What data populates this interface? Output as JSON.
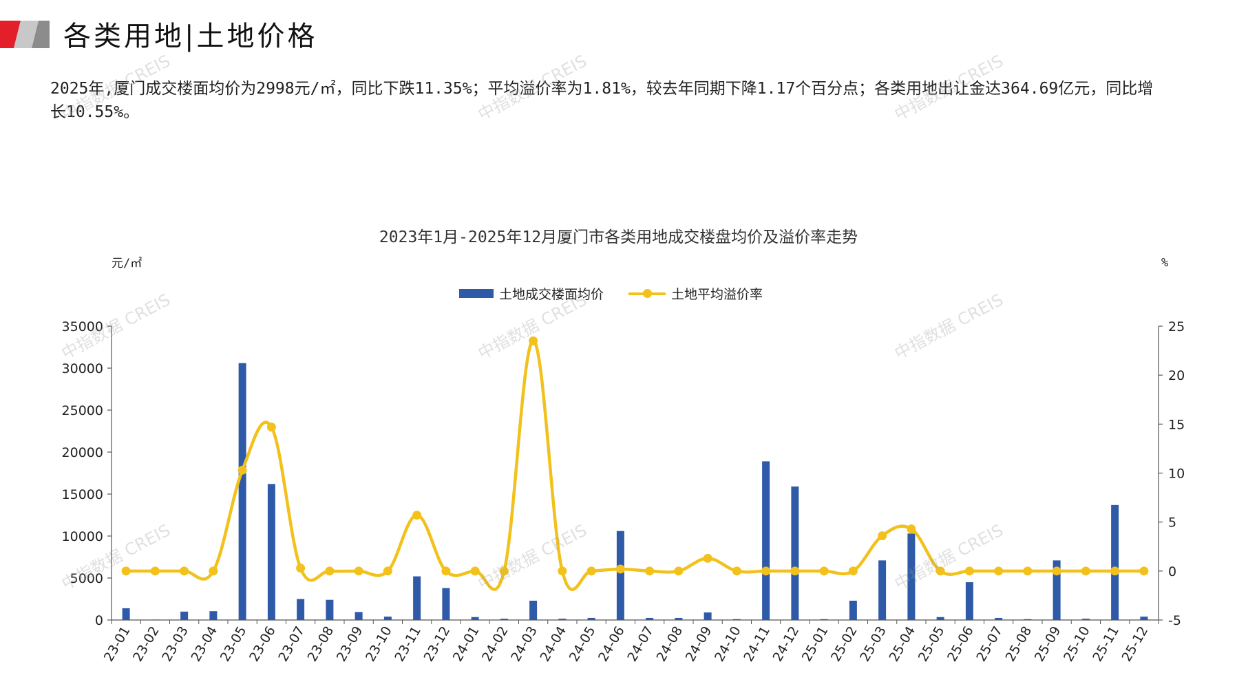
{
  "header": {
    "title": "各类用地|土地价格",
    "summary": "2025年,厦门成交楼面均价为2998元/㎡，同比下跌11.35%；平均溢价率为1.81%，较去年同期下降1.17个百分点；各类用地出让金达364.69亿元，同比增长10.55%。"
  },
  "watermark": "中指数据 CREIS",
  "colors": {
    "bar": "#2E5AA8",
    "line": "#F2C11B",
    "logo_red": "#E3202A",
    "logo_gray": "#9A9A9A"
  },
  "chart_data": {
    "type": "bar",
    "title": "2023年1月-2025年12月厦门市各类用地成交楼盘均价及溢价率走势",
    "ylabel_left": "元/㎡",
    "ylabel_right": "%",
    "ylim_left": [
      0,
      35000
    ],
    "ylim_right": [
      -5,
      25
    ],
    "yticks_left": [
      0,
      5000,
      10000,
      15000,
      20000,
      25000,
      30000,
      35000
    ],
    "yticks_right": [
      -5,
      0,
      5,
      10,
      15,
      20,
      25
    ],
    "legend_position": "top-center",
    "grid": false,
    "categories": [
      "23-01",
      "23-02",
      "23-03",
      "23-04",
      "23-05",
      "23-06",
      "23-07",
      "23-08",
      "23-09",
      "23-10",
      "23-11",
      "23-12",
      "24-01",
      "24-02",
      "24-03",
      "24-04",
      "24-05",
      "24-06",
      "24-07",
      "24-08",
      "24-09",
      "24-10",
      "24-11",
      "24-12",
      "25-01",
      "25-02",
      "25-03",
      "25-04",
      "25-05",
      "25-06",
      "25-07",
      "25-08",
      "25-09",
      "25-10",
      "25-11",
      "25-12"
    ],
    "series": [
      {
        "name": "土地成交楼面均价",
        "kind": "bar",
        "axis": "left",
        "values": [
          1400,
          50,
          1000,
          1050,
          30600,
          16200,
          2500,
          2400,
          950,
          400,
          5200,
          3800,
          350,
          150,
          2300,
          150,
          250,
          10600,
          250,
          250,
          900,
          100,
          18900,
          15900,
          100,
          2300,
          7100,
          10300,
          350,
          4500,
          250,
          100,
          7100,
          150,
          13700,
          400
        ]
      },
      {
        "name": "土地平均溢价率",
        "kind": "line",
        "axis": "right",
        "values": [
          0,
          0,
          0,
          0,
          10.3,
          14.7,
          0.3,
          0,
          0,
          0,
          5.7,
          0,
          0,
          0,
          23.5,
          0,
          0,
          0.2,
          0,
          0,
          1.3,
          0,
          0,
          0,
          0,
          0,
          3.6,
          4.3,
          0,
          0,
          0,
          0,
          0,
          0,
          0,
          0
        ]
      }
    ]
  }
}
